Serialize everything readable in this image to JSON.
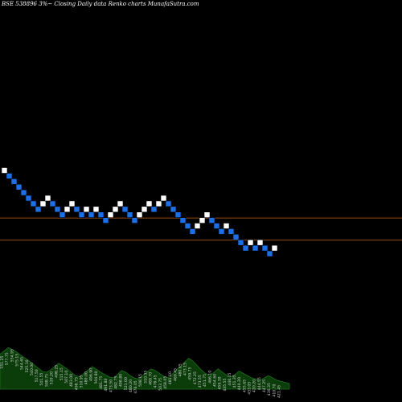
{
  "title": "BSE 538896  3%~   Closing Daily data  Renko  charts MunafaSutra.com",
  "colors": {
    "background": "#000000",
    "up_brick": "#ffffff",
    "down_brick": "#1c6fe6",
    "brick_edge": "#000000",
    "hline": "#c8691a",
    "volume_fill": "#0b3d0b",
    "volume_line": "#1f6e1f",
    "label_text": "#cfcfcf"
  },
  "chart_data": {
    "type": "renko",
    "bricks": [
      {
        "i": 0,
        "level": 37,
        "dir": "up"
      },
      {
        "i": 1,
        "level": 36,
        "dir": "down"
      },
      {
        "i": 2,
        "level": 35,
        "dir": "down"
      },
      {
        "i": 3,
        "level": 34,
        "dir": "down"
      },
      {
        "i": 4,
        "level": 33,
        "dir": "down"
      },
      {
        "i": 5,
        "level": 32,
        "dir": "down"
      },
      {
        "i": 6,
        "level": 31,
        "dir": "down"
      },
      {
        "i": 7,
        "level": 30,
        "dir": "down"
      },
      {
        "i": 8,
        "level": 31,
        "dir": "up"
      },
      {
        "i": 9,
        "level": 32,
        "dir": "up"
      },
      {
        "i": 10,
        "level": 31,
        "dir": "down"
      },
      {
        "i": 11,
        "level": 30,
        "dir": "down"
      },
      {
        "i": 12,
        "level": 29,
        "dir": "down"
      },
      {
        "i": 13,
        "level": 30,
        "dir": "up"
      },
      {
        "i": 14,
        "level": 31,
        "dir": "up"
      },
      {
        "i": 15,
        "level": 30,
        "dir": "down"
      },
      {
        "i": 16,
        "level": 29,
        "dir": "down"
      },
      {
        "i": 17,
        "level": 30,
        "dir": "up"
      },
      {
        "i": 18,
        "level": 29,
        "dir": "down"
      },
      {
        "i": 19,
        "level": 30,
        "dir": "up"
      },
      {
        "i": 20,
        "level": 29,
        "dir": "down"
      },
      {
        "i": 21,
        "level": 28,
        "dir": "down"
      },
      {
        "i": 22,
        "level": 29,
        "dir": "up"
      },
      {
        "i": 23,
        "level": 30,
        "dir": "up"
      },
      {
        "i": 24,
        "level": 31,
        "dir": "up"
      },
      {
        "i": 25,
        "level": 30,
        "dir": "down"
      },
      {
        "i": 26,
        "level": 29,
        "dir": "down"
      },
      {
        "i": 27,
        "level": 28,
        "dir": "down"
      },
      {
        "i": 28,
        "level": 29,
        "dir": "up"
      },
      {
        "i": 29,
        "level": 30,
        "dir": "up"
      },
      {
        "i": 30,
        "level": 31,
        "dir": "up"
      },
      {
        "i": 31,
        "level": 30,
        "dir": "down"
      },
      {
        "i": 32,
        "level": 31,
        "dir": "up"
      },
      {
        "i": 33,
        "level": 32,
        "dir": "up"
      },
      {
        "i": 34,
        "level": 31,
        "dir": "down"
      },
      {
        "i": 35,
        "level": 30,
        "dir": "down"
      },
      {
        "i": 36,
        "level": 29,
        "dir": "down"
      },
      {
        "i": 37,
        "level": 28,
        "dir": "down"
      },
      {
        "i": 38,
        "level": 27,
        "dir": "down"
      },
      {
        "i": 39,
        "level": 26,
        "dir": "down"
      },
      {
        "i": 40,
        "level": 27,
        "dir": "up"
      },
      {
        "i": 41,
        "level": 28,
        "dir": "up"
      },
      {
        "i": 42,
        "level": 29,
        "dir": "up"
      },
      {
        "i": 43,
        "level": 28,
        "dir": "down"
      },
      {
        "i": 44,
        "level": 27,
        "dir": "down"
      },
      {
        "i": 45,
        "level": 26,
        "dir": "down"
      },
      {
        "i": 46,
        "level": 27,
        "dir": "up"
      },
      {
        "i": 47,
        "level": 26,
        "dir": "down"
      },
      {
        "i": 48,
        "level": 25,
        "dir": "down"
      },
      {
        "i": 49,
        "level": 24,
        "dir": "down"
      },
      {
        "i": 50,
        "level": 23,
        "dir": "down"
      },
      {
        "i": 51,
        "level": 24,
        "dir": "up"
      },
      {
        "i": 52,
        "level": 23,
        "dir": "down"
      },
      {
        "i": 53,
        "level": 24,
        "dir": "up"
      },
      {
        "i": 54,
        "level": 23,
        "dir": "down"
      },
      {
        "i": 55,
        "level": 22,
        "dir": "down"
      },
      {
        "i": 56,
        "level": 23,
        "dir": "up"
      }
    ],
    "hlines": [
      28.5,
      24.5
    ],
    "volume_labels": [
      "551.25",
      "577.75",
      "554.95",
      "575.15",
      "544.65",
      "525.10",
      "540.00",
      "517.50",
      "541.55",
      "508.75",
      "520.20",
      "498.25",
      "515.15",
      "507.10",
      "483.00",
      "498.75",
      "510.95",
      "480.00",
      "496.90",
      "504.80",
      "481.75",
      "491.80",
      "473.50",
      "482.75",
      "498.80",
      "521.00",
      "480.20",
      "476.05",
      "508.15",
      "510.35",
      "489.70",
      "478.45",
      "503.75",
      "458.05",
      "481.10",
      "469.45",
      "480.65",
      "473.15",
      "459.75",
      "472.25",
      "473.55",
      "451.75",
      "466.10",
      "454.60",
      "459.30",
      "435.55",
      "446.15",
      "451.35",
      "440.20",
      "455.65",
      "433.05",
      "420.20",
      "444.55",
      "447.25",
      "430.35",
      "410.70",
      "421.45"
    ],
    "volume": [
      0.62,
      0.68,
      0.74,
      0.7,
      0.66,
      0.6,
      0.55,
      0.5,
      0.44,
      0.38,
      0.32,
      0.3,
      0.34,
      0.4,
      0.46,
      0.41,
      0.36,
      0.3,
      0.24,
      0.22,
      0.28,
      0.34,
      0.4,
      0.35,
      0.3,
      0.26,
      0.22,
      0.2,
      0.26,
      0.33,
      0.3,
      0.24,
      0.2,
      0.18,
      0.24,
      0.3,
      0.36,
      0.33,
      0.28,
      0.23,
      0.2,
      0.26,
      0.34,
      0.4,
      0.48,
      0.55,
      0.5,
      0.42,
      0.34,
      0.28,
      0.24,
      0.3,
      0.36,
      0.3,
      0.25,
      0.22,
      0.26,
      0.32,
      0.28,
      0.24,
      0.2,
      0.18,
      0.16,
      0.2,
      0.24,
      0.2,
      0.16,
      0.14,
      0.12,
      0.1
    ]
  }
}
